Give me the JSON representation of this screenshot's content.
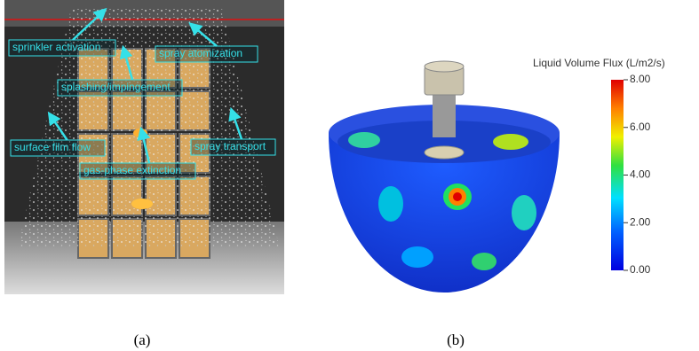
{
  "panel_a": {
    "labels": [
      "sprinkler activation",
      "spray atomization",
      "splashing/impingement",
      "surface film flow",
      "gas-phase extinction",
      "spray transport"
    ],
    "caption": "(a)"
  },
  "panel_b": {
    "colorbar": {
      "title": "Liquid Volume Flux (L/m2/s)",
      "range": [
        0,
        8
      ],
      "ticks": [
        {
          "value": 8,
          "label": "8.00"
        },
        {
          "value": 6,
          "label": "6.00"
        },
        {
          "value": 4,
          "label": "4.00"
        },
        {
          "value": 2,
          "label": "2.00"
        },
        {
          "value": 0,
          "label": "0.00"
        }
      ]
    },
    "caption": "(b)"
  }
}
